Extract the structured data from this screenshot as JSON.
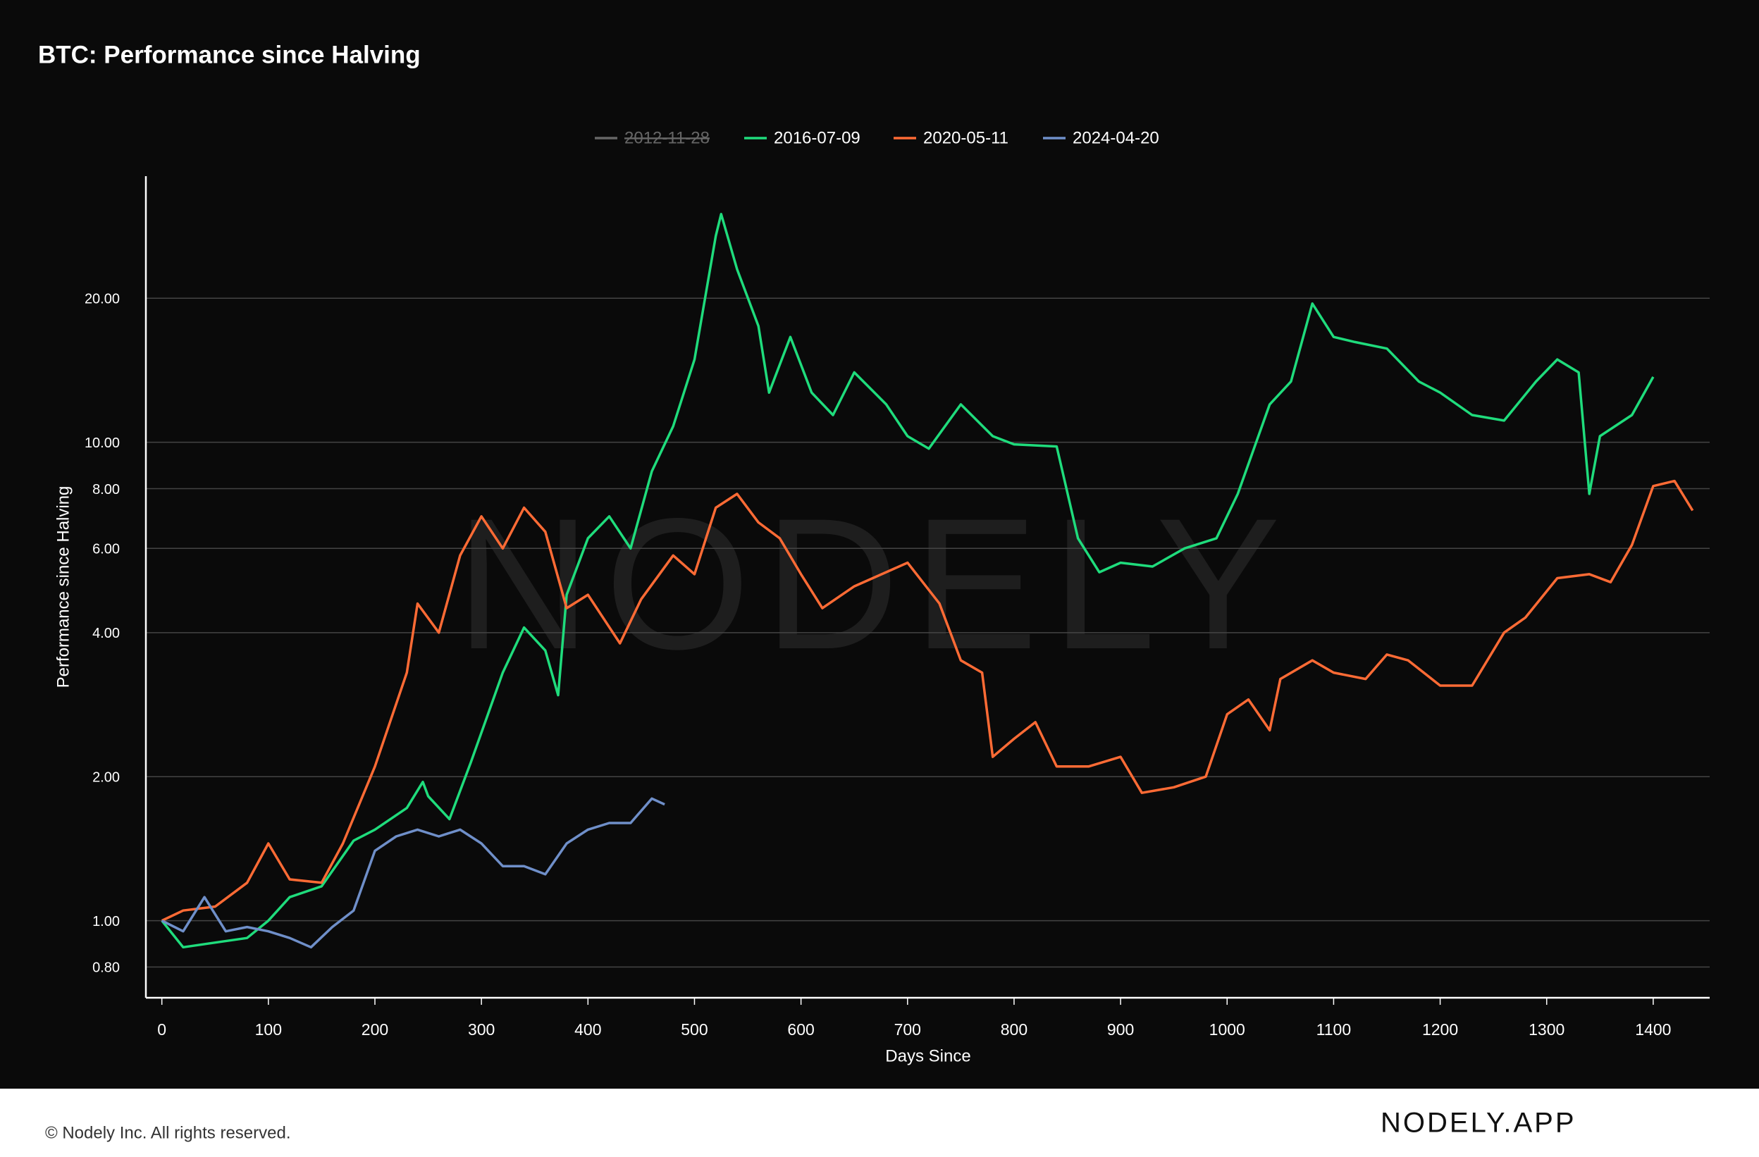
{
  "chart_data": {
    "type": "line",
    "title": "BTC: Performance since Halving",
    "xlabel": "Days Since",
    "ylabel": "Performance since Halving",
    "watermark": "NODELY",
    "log_y": true,
    "grid": true,
    "legend": "top",
    "xlim": [
      -15,
      1453
    ],
    "xticks": [
      0,
      100,
      200,
      300,
      400,
      500,
      600,
      700,
      800,
      900,
      1000,
      1100,
      1200,
      1300,
      1400
    ],
    "ylim": [
      0.69,
      36
    ],
    "yticks": [
      {
        "value": 0.8,
        "label": "0.80"
      },
      {
        "value": 1,
        "label": "1.00"
      },
      {
        "value": 2,
        "label": "2.00"
      },
      {
        "value": 4,
        "label": "4.00"
      },
      {
        "value": 6,
        "label": "6.00"
      },
      {
        "value": 8,
        "label": "8.00"
      },
      {
        "value": 10,
        "label": "10.00"
      },
      {
        "value": 20,
        "label": "20.00"
      }
    ],
    "series": [
      {
        "name": "2012-11-28",
        "color": "#666666",
        "visible": false,
        "x": [],
        "values": []
      },
      {
        "name": "2016-07-09",
        "color": "#1fdc7c",
        "visible": true,
        "x": [
          0,
          20,
          50,
          80,
          100,
          120,
          150,
          180,
          200,
          230,
          245,
          250,
          270,
          290,
          320,
          340,
          360,
          372,
          380,
          400,
          420,
          440,
          460,
          480,
          500,
          520,
          525,
          540,
          560,
          570,
          590,
          610,
          630,
          650,
          680,
          700,
          720,
          750,
          780,
          800,
          840,
          860,
          880,
          900,
          930,
          960,
          990,
          1010,
          1040,
          1060,
          1080,
          1100,
          1120,
          1150,
          1180,
          1200,
          1230,
          1260,
          1290,
          1310,
          1330,
          1340,
          1350,
          1380,
          1400
        ],
        "values": [
          1.0,
          0.88,
          0.9,
          0.92,
          1.0,
          1.12,
          1.18,
          1.47,
          1.55,
          1.72,
          1.95,
          1.82,
          1.63,
          2.14,
          3.3,
          4.1,
          3.67,
          2.96,
          4.8,
          6.3,
          7.0,
          6.0,
          8.7,
          10.8,
          14.9,
          27,
          30,
          23,
          17.5,
          12.7,
          16.6,
          12.7,
          11.4,
          14,
          12,
          10.3,
          9.7,
          12,
          10.3,
          9.9,
          9.8,
          6.3,
          5.35,
          5.6,
          5.5,
          6,
          6.3,
          7.8,
          12,
          13.4,
          19.5,
          16.6,
          16.2,
          15.7,
          13.4,
          12.7,
          11.4,
          11.1,
          13.4,
          14.9,
          14,
          7.8,
          10.3,
          11.4,
          13.7
        ]
      },
      {
        "name": "2020-05-11",
        "color": "#ff6b35",
        "visible": true,
        "x": [
          0,
          20,
          50,
          80,
          100,
          120,
          150,
          170,
          200,
          230,
          240,
          260,
          280,
          300,
          320,
          340,
          360,
          380,
          400,
          430,
          450,
          480,
          500,
          520,
          540,
          560,
          580,
          600,
          620,
          650,
          700,
          730,
          750,
          770,
          780,
          800,
          820,
          840,
          870,
          900,
          920,
          950,
          980,
          1000,
          1020,
          1040,
          1050,
          1080,
          1100,
          1130,
          1150,
          1170,
          1200,
          1230,
          1260,
          1280,
          1310,
          1340,
          1360,
          1380,
          1400,
          1420,
          1437
        ],
        "values": [
          1.0,
          1.05,
          1.07,
          1.2,
          1.45,
          1.22,
          1.2,
          1.45,
          2.1,
          3.3,
          4.6,
          4.0,
          5.8,
          7.0,
          6.0,
          7.3,
          6.5,
          4.5,
          4.8,
          3.8,
          4.7,
          5.8,
          5.3,
          7.3,
          7.8,
          6.8,
          6.3,
          5.3,
          4.5,
          5.0,
          5.6,
          4.6,
          3.5,
          3.3,
          2.2,
          2.4,
          2.6,
          2.1,
          2.1,
          2.2,
          1.85,
          1.9,
          2.0,
          2.7,
          2.9,
          2.5,
          3.2,
          3.5,
          3.3,
          3.2,
          3.6,
          3.5,
          3.1,
          3.1,
          4.0,
          4.3,
          5.2,
          5.3,
          5.1,
          6.1,
          8.1,
          8.3,
          7.2
        ]
      },
      {
        "name": "2024-04-20",
        "color": "#6f8fc9",
        "visible": true,
        "x": [
          0,
          20,
          40,
          60,
          80,
          100,
          120,
          140,
          160,
          180,
          200,
          220,
          240,
          260,
          280,
          300,
          320,
          340,
          360,
          380,
          400,
          420,
          440,
          460,
          472
        ],
        "values": [
          1.0,
          0.95,
          1.12,
          0.95,
          0.97,
          0.95,
          0.92,
          0.88,
          0.97,
          1.05,
          1.4,
          1.5,
          1.55,
          1.5,
          1.55,
          1.45,
          1.3,
          1.3,
          1.25,
          1.45,
          1.55,
          1.6,
          1.6,
          1.8,
          1.75
        ]
      }
    ]
  },
  "footer": {
    "copyright": "© Nodely Inc. All rights reserved.",
    "brand": "NODELY.APP"
  }
}
